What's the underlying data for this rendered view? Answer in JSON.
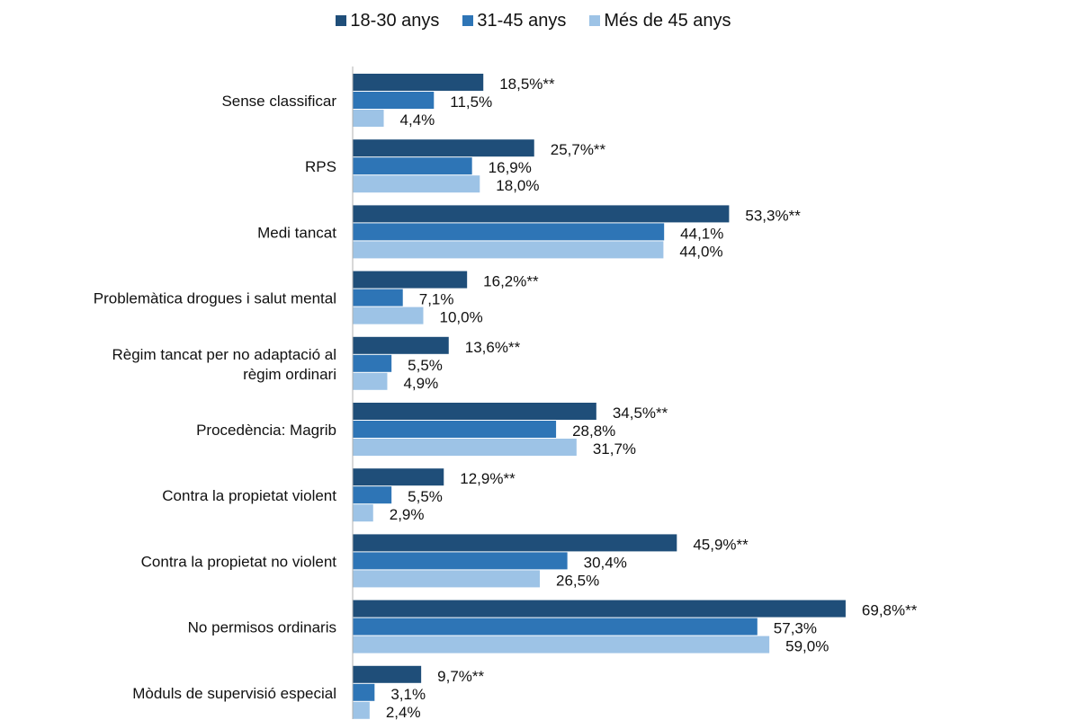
{
  "chart_data": {
    "type": "bar",
    "orientation": "horizontal",
    "categories": [
      "Sense classificar",
      "RPS",
      "Medi tancat",
      "Problemàtica drogues i salut mental",
      [
        "Règim tancat per no adaptació al",
        "règim ordinari"
      ],
      "Procedència: Magrib",
      "Contra la propietat violent",
      "Contra la propietat no violent",
      "No permisos ordinaris",
      "Mòduls de supervisió especial"
    ],
    "series": [
      {
        "name": "18-30 anys",
        "color": "#1f4e79",
        "values": [
          18.5,
          25.7,
          53.3,
          16.2,
          13.6,
          34.5,
          12.9,
          45.9,
          69.8,
          9.7
        ],
        "labels": [
          "18,5%**",
          "25,7%**",
          "53,3%**",
          "16,2%**",
          "13,6%**",
          "34,5%**",
          "12,9%**",
          "45,9%**",
          "69,8%**",
          "9,7%**"
        ]
      },
      {
        "name": "31-45 anys",
        "color": "#2e75b6",
        "values": [
          11.5,
          16.9,
          44.1,
          7.1,
          5.5,
          28.8,
          5.5,
          30.4,
          57.3,
          3.1
        ],
        "labels": [
          "11,5%",
          "16,9%",
          "44,1%",
          "7,1%",
          "5,5%",
          "28,8%",
          "5,5%",
          "30,4%",
          "57,3%",
          "3,1%"
        ]
      },
      {
        "name": "Més de 45 anys",
        "color": "#9dc3e6",
        "values": [
          4.4,
          18.0,
          44.0,
          10.0,
          4.9,
          31.7,
          2.9,
          26.5,
          59.0,
          2.4
        ],
        "labels": [
          "4,4%",
          "18,0%",
          "44,0%",
          "10,0%",
          "4,9%",
          "31,7%",
          "2,9%",
          "26,5%",
          "59,0%",
          "2,4%"
        ]
      }
    ],
    "xlim": [
      0,
      100
    ],
    "grid": false,
    "legend_position": "top-center"
  }
}
